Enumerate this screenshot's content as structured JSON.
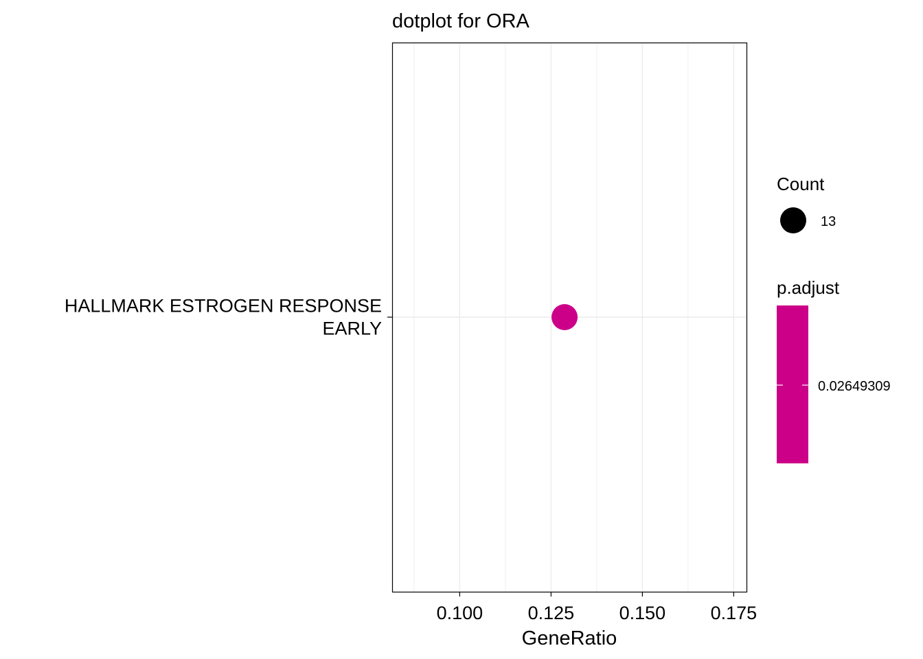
{
  "chart_data": {
    "type": "scatter",
    "title": "dotplot for ORA",
    "xlabel": "GeneRatio",
    "ylabel": "",
    "xlim": [
      0.0815,
      0.1785
    ],
    "x_ticks": [
      0.1,
      0.125,
      0.15,
      0.175
    ],
    "x_tick_labels": [
      "0.100",
      "0.125",
      "0.150",
      "0.175"
    ],
    "categories": [
      "HALLMARK ESTROGEN RESPONSE EARLY"
    ],
    "category_label_lines": [
      [
        "HALLMARK ESTROGEN RESPONSE",
        "EARLY"
      ]
    ],
    "points": [
      {
        "category": "HALLMARK ESTROGEN RESPONSE EARLY",
        "x": 0.1287,
        "count": 13,
        "p_adjust": 0.02649309
      }
    ],
    "grid": true,
    "legend_position": "right",
    "legend": {
      "size": {
        "title": "Count",
        "labels": [
          "13"
        ]
      },
      "color": {
        "title": "p.adjust",
        "labels": [
          "0.02649309"
        ]
      }
    },
    "colors": {
      "point": "#CC0088",
      "grid": "#EBEBEB",
      "axis": "#000000"
    }
  }
}
